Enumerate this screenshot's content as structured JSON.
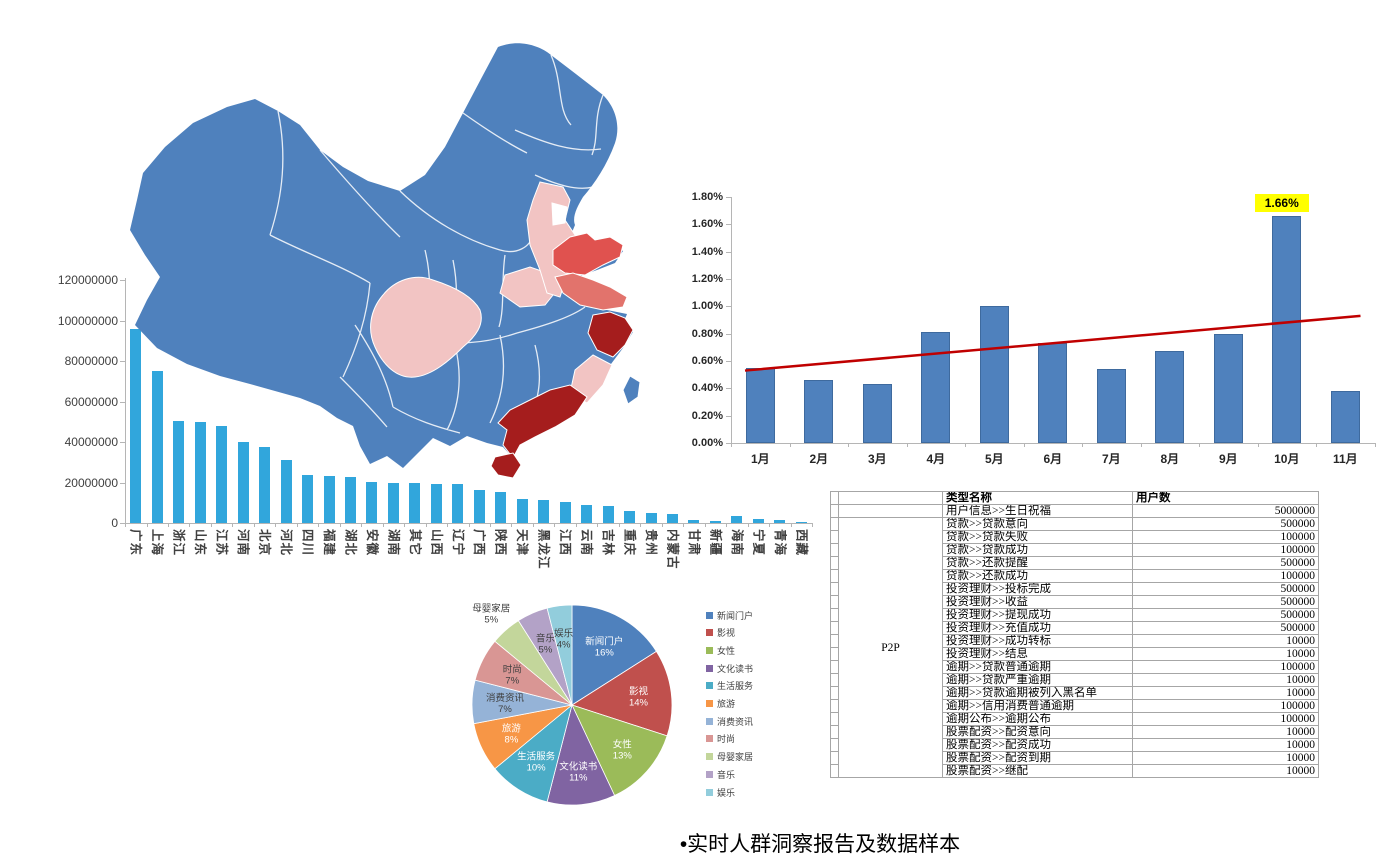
{
  "page": {
    "caption": "•实时人群洞察报告及数据样本"
  },
  "map": {
    "regions": {
      "base": "#4f81bd",
      "border": "#ffffff",
      "sichuan": "#f2c4c3",
      "henan": "#f2c4c3",
      "hebei": "#f2c4c3",
      "beijing": "#ffffff",
      "shandong": "#e0524f",
      "jiangsu": "#e2736c",
      "zhejiang": "#a51d1d",
      "fujian": "#f2c4c3",
      "guangdong": "#a51d1d",
      "hainan": "#a51d1d",
      "taiwan": "#4f81bd"
    }
  },
  "chart_data": [
    {
      "id": "province-users",
      "type": "bar",
      "title": "",
      "categories": [
        "广东",
        "上海",
        "浙江",
        "山东",
        "江苏",
        "河南",
        "北京",
        "河北",
        "四川",
        "福建",
        "湖北",
        "安徽",
        "湖南",
        "其它",
        "山西",
        "辽宁",
        "广西",
        "陕西",
        "天津",
        "黑龙江",
        "江西",
        "云南",
        "吉林",
        "重庆",
        "贵州",
        "内蒙古",
        "甘肃",
        "新疆",
        "海南",
        "宁夏",
        "青海",
        "西藏"
      ],
      "values": [
        96000000,
        75000000,
        50500000,
        50000000,
        48000000,
        40000000,
        37500000,
        31000000,
        23500000,
        23000000,
        22500000,
        20500000,
        20000000,
        19800000,
        19500000,
        19200000,
        16500000,
        15500000,
        11700000,
        11300000,
        10300000,
        9000000,
        8500000,
        6000000,
        5000000,
        4400000,
        1400000,
        800000,
        3400000,
        1800000,
        1400000,
        400000
      ],
      "ylim": [
        0,
        120000000
      ],
      "ytick_labels": [
        "0",
        "20000000",
        "40000000",
        "60000000",
        "80000000",
        "100000000",
        "120000000"
      ],
      "bar_color": "#31a6dc",
      "grid": false,
      "legend": "none"
    },
    {
      "id": "monthly-rate",
      "type": "bar",
      "categories": [
        "1月",
        "2月",
        "3月",
        "4月",
        "5月",
        "6月",
        "7月",
        "8月",
        "9月",
        "10月",
        "11月"
      ],
      "values": [
        0.55,
        0.46,
        0.43,
        0.81,
        1.0,
        0.73,
        0.54,
        0.67,
        0.8,
        1.66,
        0.38
      ],
      "ylim": [
        0,
        1.8
      ],
      "ytick_labels": [
        "0.00%",
        "0.20%",
        "0.40%",
        "0.60%",
        "0.80%",
        "1.00%",
        "1.20%",
        "1.40%",
        "1.60%",
        "1.80%"
      ],
      "bar_color": "#4f81bd",
      "grid": false,
      "trend_line": {
        "type": "linear",
        "color": "#c00000",
        "start_value": 0.53,
        "end_value": 0.93
      },
      "annotation": {
        "text": "1.66%",
        "category_index": 9,
        "bg_color": "#ffff00"
      }
    },
    {
      "id": "category-share",
      "type": "pie",
      "start_angle_deg": 0,
      "direction": "clockwise",
      "legend_position": "right",
      "slices": [
        {
          "label": "新闻门户",
          "value": 16,
          "pct_label": "16%",
          "color": "#4f81bd",
          "text_color": "#ffffff"
        },
        {
          "label": "影视",
          "value": 14,
          "pct_label": "14%",
          "color": "#c0504d",
          "text_color": "#ffffff"
        },
        {
          "label": "女性",
          "value": 13,
          "pct_label": "13%",
          "color": "#9bbb59",
          "text_color": "#ffffff"
        },
        {
          "label": "文化读书",
          "value": 11,
          "pct_label": "11%",
          "color": "#8064a2",
          "text_color": "#ffffff"
        },
        {
          "label": "生活服务",
          "value": 10,
          "pct_label": "10%",
          "color": "#4bacc6",
          "text_color": "#ffffff"
        },
        {
          "label": "旅游",
          "value": 8,
          "pct_label": "8%",
          "color": "#f79646",
          "text_color": "#ffffff"
        },
        {
          "label": "消费资讯",
          "value": 7,
          "pct_label": "7%",
          "color": "#95b3d7",
          "text_color": "#3f3f3f"
        },
        {
          "label": "时尚",
          "value": 7,
          "pct_label": "7%",
          "color": "#d99694",
          "text_color": "#3f3f3f"
        },
        {
          "label": "母婴家居",
          "value": 5,
          "pct_label": "5%",
          "color": "#c3d69b",
          "text_color": "#3f3f3f",
          "label_outside": true
        },
        {
          "label": "音乐",
          "value": 5,
          "pct_label": "5%",
          "color": "#b3a2c7",
          "text_color": "#3f3f3f"
        },
        {
          "label": "娱乐",
          "value": 4,
          "pct_label": "4%",
          "color": "#92cddc",
          "text_color": "#3f3f3f"
        }
      ]
    }
  ],
  "table": {
    "header": {
      "name": "类型名称",
      "count": "用户数"
    },
    "group_label": "P2P",
    "group_start_row": 1,
    "rows": [
      {
        "name": "用户信息>>生日祝福",
        "value": "5000000"
      },
      {
        "name": "贷款>>贷款意向",
        "value": "500000"
      },
      {
        "name": "贷款>>贷款失败",
        "value": "100000"
      },
      {
        "name": "贷款>>贷款成功",
        "value": "100000"
      },
      {
        "name": "贷款>>还款提醒",
        "value": "500000"
      },
      {
        "name": "贷款>>还款成功",
        "value": "100000"
      },
      {
        "name": "投资理财>>投标完成",
        "value": "500000"
      },
      {
        "name": "投资理财>>收益",
        "value": "500000"
      },
      {
        "name": "投资理财>>提现成功",
        "value": "500000"
      },
      {
        "name": "投资理财>>充值成功",
        "value": "500000"
      },
      {
        "name": "投资理财>>成功转标",
        "value": "10000"
      },
      {
        "name": "投资理财>>结息",
        "value": "10000"
      },
      {
        "name": "逾期>>贷款普通逾期",
        "value": "100000"
      },
      {
        "name": "逾期>>贷款严重逾期",
        "value": "10000"
      },
      {
        "name": "逾期>>贷款逾期被列入黑名单",
        "value": "10000"
      },
      {
        "name": "逾期>>信用消费普通逾期",
        "value": "100000"
      },
      {
        "name": "逾期公布>>逾期公布",
        "value": "100000"
      },
      {
        "name": "股票配资>>配资意向",
        "value": "10000"
      },
      {
        "name": "股票配资>>配资成功",
        "value": "10000"
      },
      {
        "name": "股票配资>>配资到期",
        "value": "10000"
      },
      {
        "name": "股票配资>>继配",
        "value": "10000"
      }
    ]
  }
}
